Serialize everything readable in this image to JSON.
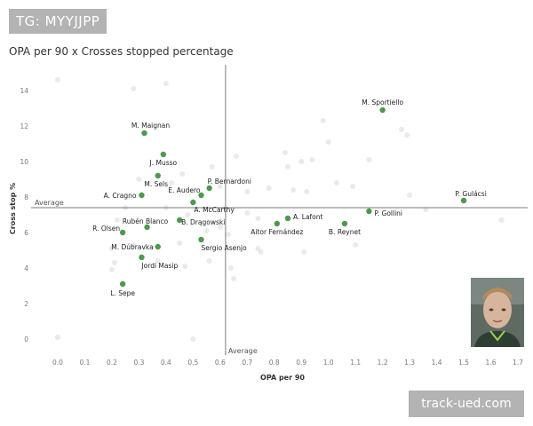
{
  "tag_label": "TG: MYYJJPP",
  "watermark_text": "track-ued.com",
  "colors": {
    "highlight": "#4c9a4c",
    "background_point": "#d9d9d9",
    "reference_line": "#7a7a7a",
    "tag_bg": "#b3b3b3"
  },
  "chart_data": {
    "type": "scatter",
    "title": "OPA per 90 x Crosses stopped percentage",
    "xlabel": "OPA per 90",
    "ylabel": "Cross stop %",
    "xlim": [
      0,
      1.7
    ],
    "ylim": [
      0,
      14
    ],
    "xticks": [
      "0.0",
      "0.1",
      "0.2",
      "0.3",
      "0.4",
      "0.5",
      "0.6",
      "0.7",
      "0.8",
      "0.9",
      "1.0",
      "1.1",
      "1.2",
      "1.3",
      "1.4",
      "1.5",
      "1.6",
      "1.7"
    ],
    "yticks": [
      "0",
      "2",
      "4",
      "6",
      "8",
      "10",
      "12",
      "14"
    ],
    "grid": false,
    "reference_lines": {
      "x_value": 0.62,
      "y_value": 7.4,
      "x_label": "Average",
      "y_label": "Average"
    },
    "labeled_points": [
      {
        "name": "M. Sportiello",
        "x": 1.2,
        "y": 12.9
      },
      {
        "name": "M. Maignan",
        "x": 0.32,
        "y": 11.6
      },
      {
        "name": "J. Musso",
        "x": 0.39,
        "y": 10.4
      },
      {
        "name": "M. Sels",
        "x": 0.37,
        "y": 9.2
      },
      {
        "name": "P. Bernardoni",
        "x": 0.56,
        "y": 8.5
      },
      {
        "name": "E. Audero",
        "x": 0.53,
        "y": 8.1
      },
      {
        "name": "A. Cragno",
        "x": 0.31,
        "y": 8.1
      },
      {
        "name": "A. McCarthy",
        "x": 0.5,
        "y": 7.7
      },
      {
        "name": "P. Gulácsi",
        "x": 1.5,
        "y": 7.8
      },
      {
        "name": "P. Gollini",
        "x": 1.15,
        "y": 7.2
      },
      {
        "name": "A. Lafont",
        "x": 0.85,
        "y": 6.8
      },
      {
        "name": "Aitor Fernández",
        "x": 0.81,
        "y": 6.5
      },
      {
        "name": "B. Reynet",
        "x": 1.06,
        "y": 6.5
      },
      {
        "name": "Rubén Blanco",
        "x": 0.33,
        "y": 6.3
      },
      {
        "name": "B. Drągowski",
        "x": 0.45,
        "y": 6.7
      },
      {
        "name": "R. Olsen",
        "x": 0.24,
        "y": 6.0
      },
      {
        "name": "Sergio Asenjo",
        "x": 0.53,
        "y": 5.6
      },
      {
        "name": "M. Dúbravka",
        "x": 0.37,
        "y": 5.2
      },
      {
        "name": "Jordi Masip",
        "x": 0.31,
        "y": 4.6
      },
      {
        "name": "L. Sepe",
        "x": 0.24,
        "y": 3.1
      }
    ],
    "background_points": [
      {
        "x": 0.0,
        "y": 14.6
      },
      {
        "x": 0.28,
        "y": 14.1
      },
      {
        "x": 0.4,
        "y": 14.4
      },
      {
        "x": 0.0,
        "y": 0.1
      },
      {
        "x": 0.5,
        "y": 0.0
      },
      {
        "x": 0.98,
        "y": 12.3
      },
      {
        "x": 1.0,
        "y": 11.1
      },
      {
        "x": 1.27,
        "y": 11.8
      },
      {
        "x": 1.29,
        "y": 11.5
      },
      {
        "x": 0.84,
        "y": 10.5
      },
      {
        "x": 0.9,
        "y": 10.0
      },
      {
        "x": 0.94,
        "y": 10.1
      },
      {
        "x": 1.15,
        "y": 10.1
      },
      {
        "x": 0.66,
        "y": 10.3
      },
      {
        "x": 0.57,
        "y": 9.7
      },
      {
        "x": 0.46,
        "y": 9.3
      },
      {
        "x": 0.85,
        "y": 9.7
      },
      {
        "x": 0.42,
        "y": 8.8
      },
      {
        "x": 0.6,
        "y": 8.6
      },
      {
        "x": 0.7,
        "y": 8.3
      },
      {
        "x": 0.78,
        "y": 8.5
      },
      {
        "x": 0.87,
        "y": 8.4
      },
      {
        "x": 0.92,
        "y": 8.3
      },
      {
        "x": 1.03,
        "y": 8.8
      },
      {
        "x": 1.09,
        "y": 8.6
      },
      {
        "x": 1.3,
        "y": 8.1
      },
      {
        "x": 1.36,
        "y": 7.3
      },
      {
        "x": 1.64,
        "y": 6.7
      },
      {
        "x": 0.4,
        "y": 7.4
      },
      {
        "x": 0.7,
        "y": 7.1
      },
      {
        "x": 0.74,
        "y": 6.8
      },
      {
        "x": 0.6,
        "y": 6.3
      },
      {
        "x": 0.55,
        "y": 6.1
      },
      {
        "x": 0.45,
        "y": 5.4
      },
      {
        "x": 0.63,
        "y": 5.9
      },
      {
        "x": 0.74,
        "y": 5.1
      },
      {
        "x": 0.75,
        "y": 4.9
      },
      {
        "x": 0.91,
        "y": 4.9
      },
      {
        "x": 1.1,
        "y": 5.3
      },
      {
        "x": 0.2,
        "y": 5.1
      },
      {
        "x": 0.28,
        "y": 5.3
      },
      {
        "x": 0.21,
        "y": 4.3
      },
      {
        "x": 0.37,
        "y": 4.4
      },
      {
        "x": 0.56,
        "y": 4.4
      },
      {
        "x": 0.64,
        "y": 4.0
      },
      {
        "x": 0.65,
        "y": 3.4
      },
      {
        "x": 0.47,
        "y": 4.1
      },
      {
        "x": 0.22,
        "y": 6.7
      },
      {
        "x": 0.25,
        "y": 7.4
      },
      {
        "x": 0.48,
        "y": 7.0
      },
      {
        "x": 0.3,
        "y": 9.0
      },
      {
        "x": 0.2,
        "y": 3.9
      }
    ]
  }
}
